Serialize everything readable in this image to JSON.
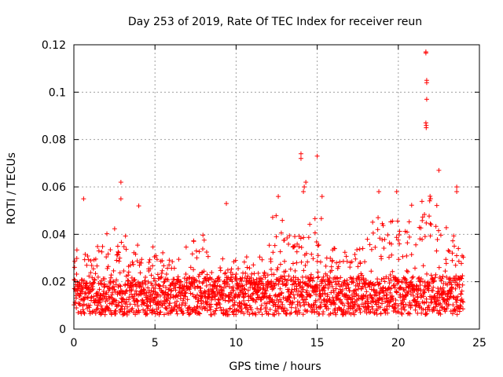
{
  "chart_data": {
    "type": "scatter",
    "title": "Day 253 of 2019, Rate Of TEC Index for receiver reun",
    "xlabel": "GPS time / hours",
    "ylabel": "ROTI / TECUs",
    "xlim": [
      0,
      25
    ],
    "ylim": [
      0,
      0.12
    ],
    "xticks": [
      0,
      5,
      10,
      15,
      20,
      25
    ],
    "yticks": [
      0,
      0.02,
      0.04,
      0.06,
      0.08,
      0.1,
      0.12
    ],
    "xtick_labels": [
      "0",
      "5",
      "10",
      "15",
      "20",
      "25"
    ],
    "ytick_labels": [
      "0",
      "0.02",
      "0.04",
      "0.06",
      "0.08",
      "0.1",
      "0.12"
    ],
    "grid": true,
    "marker": "+",
    "color": "#ff0000",
    "sample_count": 2200,
    "time_range": [
      0,
      24
    ],
    "notable_points": [
      {
        "x": 21.7,
        "y": 0.117
      },
      {
        "x": 21.7,
        "y": 0.1165
      },
      {
        "x": 21.75,
        "y": 0.105
      },
      {
        "x": 21.75,
        "y": 0.104
      },
      {
        "x": 21.75,
        "y": 0.097
      },
      {
        "x": 21.7,
        "y": 0.087
      },
      {
        "x": 21.72,
        "y": 0.086
      },
      {
        "x": 21.72,
        "y": 0.085
      },
      {
        "x": 22.5,
        "y": 0.067
      },
      {
        "x": 14.0,
        "y": 0.074
      },
      {
        "x": 14.0,
        "y": 0.072
      },
      {
        "x": 14.3,
        "y": 0.062
      },
      {
        "x": 14.2,
        "y": 0.06
      },
      {
        "x": 14.15,
        "y": 0.058
      },
      {
        "x": 15.0,
        "y": 0.073
      },
      {
        "x": 2.9,
        "y": 0.062
      },
      {
        "x": 2.9,
        "y": 0.055
      },
      {
        "x": 0.6,
        "y": 0.055
      },
      {
        "x": 4.0,
        "y": 0.052
      },
      {
        "x": 9.4,
        "y": 0.053
      },
      {
        "x": 18.8,
        "y": 0.058
      },
      {
        "x": 19.9,
        "y": 0.058
      },
      {
        "x": 23.6,
        "y": 0.06
      },
      {
        "x": 23.6,
        "y": 0.058
      },
      {
        "x": 12.6,
        "y": 0.056
      },
      {
        "x": 15.3,
        "y": 0.056
      }
    ],
    "activity_windows": [
      {
        "start": 0.0,
        "end": 1.5,
        "level": 0.03
      },
      {
        "start": 1.5,
        "end": 3.2,
        "level": 0.036
      },
      {
        "start": 3.2,
        "end": 6.5,
        "level": 0.03
      },
      {
        "start": 6.5,
        "end": 9.0,
        "level": 0.034
      },
      {
        "start": 9.0,
        "end": 12.0,
        "level": 0.026
      },
      {
        "start": 12.0,
        "end": 15.5,
        "level": 0.04
      },
      {
        "start": 15.5,
        "end": 18.0,
        "level": 0.03
      },
      {
        "start": 18.0,
        "end": 20.5,
        "level": 0.04
      },
      {
        "start": 20.5,
        "end": 22.8,
        "level": 0.048
      },
      {
        "start": 22.8,
        "end": 24.0,
        "level": 0.036
      }
    ]
  }
}
